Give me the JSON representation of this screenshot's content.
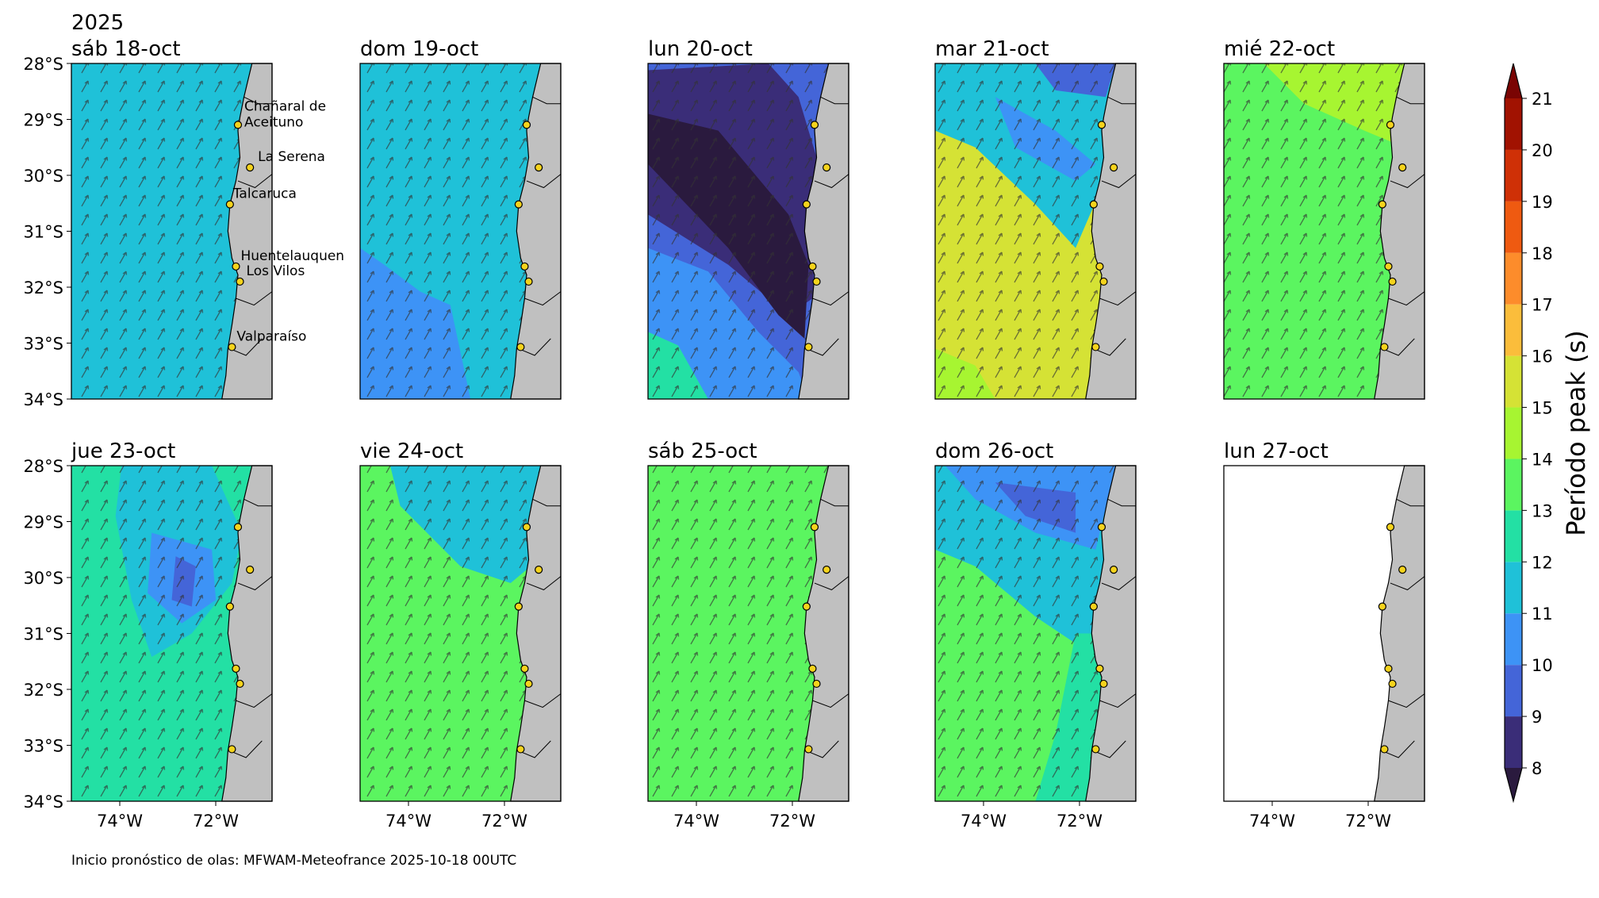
{
  "year": "2025",
  "panels": [
    "sáb 18-oct",
    "dom 19-oct",
    "lun 20-oct",
    "mar 21-oct",
    "mié 22-oct",
    "jue 23-oct",
    "vie 24-oct",
    "sáb 25-oct",
    "dom 26-oct",
    "lun 27-oct"
  ],
  "lat_labels": [
    "28°S",
    "29°S",
    "30°S",
    "31°S",
    "32°S",
    "33°S",
    "34°S"
  ],
  "lon_labels": [
    "74°W",
    "72°W"
  ],
  "cities": [
    [
      "Chañaral de",
      "Aceituno"
    ],
    [
      "La Serena"
    ],
    [
      "Talcaruca"
    ],
    [
      "Huentelauquen"
    ],
    [
      "Los Vilos"
    ],
    [
      "Valparaíso"
    ]
  ],
  "colorbar": {
    "label": "Período peak (s)",
    "ticks": [
      8,
      9,
      10,
      11,
      12,
      13,
      14,
      15,
      16,
      17,
      18,
      19,
      20,
      21
    ],
    "colors": [
      "#3a2d78",
      "#4465d8",
      "#3d93f6",
      "#1fc1d8",
      "#23e0a4",
      "#5bf560",
      "#a7f531",
      "#d5e235",
      "#fbbd3b",
      "#fd8c2b",
      "#ef5a11",
      "#cf3006",
      "#a11201"
    ],
    "under_color": "#2a1a3e",
    "over_color": "#7a0403"
  },
  "footer": "Inicio pronóstico de olas: MFWAM-Meteofrance 2025-10-18 00UTC"
}
